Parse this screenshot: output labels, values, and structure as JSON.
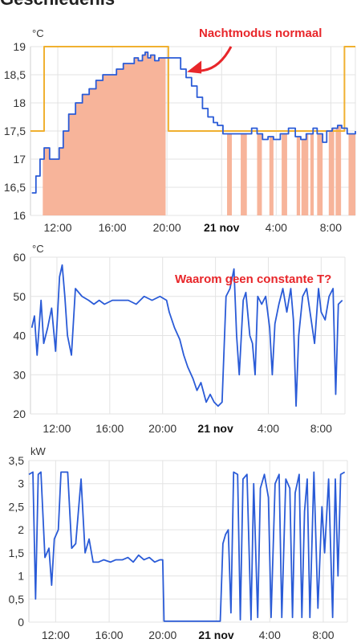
{
  "page": {
    "title": "Geschiedenis"
  },
  "colors": {
    "temperature": "#2a5bd7",
    "setpoint": "#f0b030",
    "heating": "#f7b49a",
    "annotation": "#e8262a",
    "grid": "#e3e3e3"
  },
  "chart_data": [
    {
      "type": "line",
      "ylabel": "°C",
      "ylim": [
        16,
        19
      ],
      "xlim": [
        10,
        33.8
      ],
      "yticks": [
        16,
        16.5,
        17,
        17.5,
        18,
        18.5,
        19
      ],
      "ytick_labels": [
        "16",
        "16,5",
        "17",
        "17,5",
        "18",
        "18,5",
        "19"
      ],
      "xticks": [
        12,
        16,
        20,
        24,
        28,
        32
      ],
      "xtick_labels": [
        "12:00",
        "16:00",
        "20:00",
        "21 nov",
        "4:00",
        "8:00"
      ],
      "grid": true,
      "annotation": {
        "text": "Nachtmodus normaal",
        "arrow_to": [
          21.7,
          18.55
        ]
      },
      "series": [
        {
          "role": "setpoint",
          "color": "#f0b030",
          "points": [
            [
              10,
              17.5
            ],
            [
              11,
              17.5
            ],
            [
              11,
              19
            ],
            [
              20.1,
              19
            ],
            [
              20.1,
              17.5
            ],
            [
              33,
              17.5
            ],
            [
              33,
              19
            ],
            [
              33.8,
              19
            ]
          ]
        },
        {
          "role": "temperature",
          "color": "#2a5bd7",
          "points": [
            [
              10.1,
              16.4
            ],
            [
              10.4,
              16.7
            ],
            [
              10.7,
              17
            ],
            [
              11.0,
              17.2
            ],
            [
              11.4,
              17.0
            ],
            [
              11.8,
              17.0
            ],
            [
              12.1,
              17.2
            ],
            [
              12.4,
              17.5
            ],
            [
              12.8,
              17.8
            ],
            [
              13.3,
              18.0
            ],
            [
              13.8,
              18.15
            ],
            [
              14.3,
              18.25
            ],
            [
              14.8,
              18.4
            ],
            [
              15.3,
              18.5
            ],
            [
              15.8,
              18.5
            ],
            [
              16.3,
              18.6
            ],
            [
              16.8,
              18.7
            ],
            [
              17.3,
              18.7
            ],
            [
              17.6,
              18.8
            ],
            [
              17.9,
              18.75
            ],
            [
              18.2,
              18.85
            ],
            [
              18.4,
              18.9
            ],
            [
              18.6,
              18.8
            ],
            [
              18.8,
              18.85
            ],
            [
              19.1,
              18.75
            ],
            [
              19.4,
              18.8
            ],
            [
              19.8,
              18.8
            ],
            [
              20.2,
              18.8
            ],
            [
              20.6,
              18.8
            ],
            [
              21.0,
              18.6
            ],
            [
              21.4,
              18.45
            ],
            [
              21.8,
              18.3
            ],
            [
              22.2,
              18.1
            ],
            [
              22.6,
              17.9
            ],
            [
              23.0,
              17.75
            ],
            [
              23.4,
              17.65
            ],
            [
              23.7,
              17.6
            ],
            [
              24.1,
              17.45
            ],
            [
              24.5,
              17.45
            ],
            [
              24.9,
              17.45
            ],
            [
              25.3,
              17.45
            ],
            [
              25.8,
              17.45
            ],
            [
              26.2,
              17.55
            ],
            [
              26.6,
              17.45
            ],
            [
              27.0,
              17.35
            ],
            [
              27.4,
              17.4
            ],
            [
              27.8,
              17.35
            ],
            [
              28.3,
              17.45
            ],
            [
              28.9,
              17.55
            ],
            [
              29.4,
              17.4
            ],
            [
              29.8,
              17.35
            ],
            [
              30.2,
              17.45
            ],
            [
              30.7,
              17.55
            ],
            [
              31.0,
              17.45
            ],
            [
              31.4,
              17.3
            ],
            [
              31.7,
              17.5
            ],
            [
              32.1,
              17.55
            ],
            [
              32.5,
              17.6
            ],
            [
              32.8,
              17.55
            ],
            [
              33.2,
              17.45
            ],
            [
              33.6,
              17.45
            ],
            [
              33.8,
              17.5
            ]
          ]
        }
      ],
      "heating_periods": [
        [
          10.9,
          19.9
        ],
        [
          24.4,
          24.75
        ],
        [
          25.4,
          25.85
        ],
        [
          26.6,
          26.95
        ],
        [
          27.5,
          27.8
        ],
        [
          28.4,
          28.8
        ],
        [
          29.5,
          29.75
        ],
        [
          29.85,
          30.35
        ],
        [
          30.5,
          30.75
        ],
        [
          31.0,
          31.4
        ],
        [
          31.85,
          32.25
        ],
        [
          32.35,
          32.75
        ],
        [
          33.3,
          33.8
        ]
      ]
    },
    {
      "type": "line",
      "ylabel": "°C",
      "ylim": [
        20,
        60
      ],
      "xlim": [
        10,
        33.8
      ],
      "yticks": [
        20,
        30,
        40,
        50,
        60
      ],
      "ytick_labels": [
        "20",
        "30",
        "40",
        "50",
        "60"
      ],
      "xticks": [
        12,
        16,
        20,
        24,
        28,
        32
      ],
      "xtick_labels": [
        "12:00",
        "16:00",
        "20:00",
        "21 nov",
        "4:00",
        "8:00"
      ],
      "grid": true,
      "annotation": {
        "text": "Waarom geen constante T?"
      },
      "series": [
        {
          "role": "temperature",
          "color": "#2a5bd7",
          "points": [
            [
              10.1,
              42
            ],
            [
              10.3,
              45
            ],
            [
              10.5,
              35
            ],
            [
              10.8,
              49
            ],
            [
              11.0,
              38
            ],
            [
              11.3,
              42
            ],
            [
              11.6,
              47
            ],
            [
              11.9,
              36
            ],
            [
              12.2,
              55
            ],
            [
              12.4,
              58
            ],
            [
              12.6,
              50
            ],
            [
              12.8,
              40
            ],
            [
              13.1,
              35
            ],
            [
              13.4,
              52
            ],
            [
              13.9,
              50
            ],
            [
              14.4,
              49
            ],
            [
              14.8,
              48
            ],
            [
              15.2,
              49
            ],
            [
              15.6,
              48
            ],
            [
              16.2,
              49
            ],
            [
              16.8,
              49
            ],
            [
              17.4,
              49
            ],
            [
              18.0,
              48
            ],
            [
              18.6,
              50
            ],
            [
              19.2,
              49
            ],
            [
              19.8,
              50
            ],
            [
              20.3,
              49
            ],
            [
              20.5,
              46
            ],
            [
              20.9,
              42
            ],
            [
              21.3,
              39
            ],
            [
              21.6,
              35
            ],
            [
              21.9,
              32
            ],
            [
              22.3,
              29
            ],
            [
              22.6,
              26
            ],
            [
              22.9,
              28
            ],
            [
              23.3,
              23
            ],
            [
              23.6,
              25
            ],
            [
              23.9,
              23
            ],
            [
              24.2,
              22
            ],
            [
              24.5,
              23
            ],
            [
              24.8,
              50
            ],
            [
              25.1,
              52
            ],
            [
              25.4,
              57
            ],
            [
              25.6,
              40
            ],
            [
              25.8,
              30
            ],
            [
              26.1,
              49
            ],
            [
              26.3,
              51
            ],
            [
              26.6,
              40
            ],
            [
              26.8,
              38
            ],
            [
              27.0,
              30
            ],
            [
              27.2,
              50
            ],
            [
              27.5,
              48
            ],
            [
              27.8,
              50
            ],
            [
              28.1,
              42
            ],
            [
              28.3,
              30
            ],
            [
              28.5,
              43
            ],
            [
              28.8,
              48
            ],
            [
              29.1,
              52
            ],
            [
              29.4,
              46
            ],
            [
              29.7,
              52
            ],
            [
              29.9,
              44
            ],
            [
              30.1,
              22
            ],
            [
              30.3,
              40
            ],
            [
              30.6,
              50
            ],
            [
              30.9,
              52
            ],
            [
              31.2,
              45
            ],
            [
              31.5,
              38
            ],
            [
              31.8,
              52
            ],
            [
              32.0,
              46
            ],
            [
              32.3,
              44
            ],
            [
              32.6,
              50
            ],
            [
              32.9,
              52
            ],
            [
              33.1,
              25
            ],
            [
              33.3,
              48
            ],
            [
              33.6,
              49
            ]
          ]
        }
      ]
    },
    {
      "type": "line",
      "ylabel": "kW",
      "ylim": [
        0,
        3.5
      ],
      "xlim": [
        10,
        33.8
      ],
      "yticks": [
        0,
        0.5,
        1,
        1.5,
        2,
        2.5,
        3,
        3.5
      ],
      "ytick_labels": [
        "0",
        "0,5",
        "1",
        "1,5",
        "2",
        "2,5",
        "3",
        "3,5"
      ],
      "xticks": [
        12,
        16,
        20,
        24,
        28,
        32
      ],
      "xtick_labels": [
        "12:00",
        "16:00",
        "20:00",
        "21 nov",
        "4:00",
        "8:00"
      ],
      "grid": true,
      "series": [
        {
          "role": "power",
          "color": "#2a5bd7",
          "points": [
            [
              10.0,
              3.2
            ],
            [
              10.3,
              3.25
            ],
            [
              10.5,
              0.5
            ],
            [
              10.7,
              3.2
            ],
            [
              10.9,
              3.25
            ],
            [
              11.2,
              1.4
            ],
            [
              11.5,
              1.6
            ],
            [
              11.7,
              0.8
            ],
            [
              11.9,
              1.8
            ],
            [
              12.2,
              2.0
            ],
            [
              12.4,
              3.25
            ],
            [
              12.9,
              3.25
            ],
            [
              13.2,
              1.6
            ],
            [
              13.5,
              1.7
            ],
            [
              13.9,
              3.1
            ],
            [
              14.2,
              1.5
            ],
            [
              14.5,
              1.8
            ],
            [
              14.8,
              1.3
            ],
            [
              15.2,
              1.3
            ],
            [
              15.6,
              1.35
            ],
            [
              16.1,
              1.3
            ],
            [
              16.5,
              1.35
            ],
            [
              17.0,
              1.35
            ],
            [
              17.4,
              1.4
            ],
            [
              17.8,
              1.3
            ],
            [
              18.2,
              1.45
            ],
            [
              18.6,
              1.35
            ],
            [
              19.0,
              1.4
            ],
            [
              19.4,
              1.3
            ],
            [
              19.8,
              1.35
            ],
            [
              20.0,
              1.35
            ],
            [
              20.1,
              0.02
            ],
            [
              24.3,
              0.02
            ],
            [
              24.5,
              1.7
            ],
            [
              24.7,
              1.9
            ],
            [
              24.9,
              2.0
            ],
            [
              25.1,
              0.2
            ],
            [
              25.3,
              3.25
            ],
            [
              25.6,
              3.2
            ],
            [
              25.8,
              0.05
            ],
            [
              26.0,
              3.1
            ],
            [
              26.3,
              3.2
            ],
            [
              26.6,
              0.05
            ],
            [
              26.8,
              3.0
            ],
            [
              27.1,
              0.1
            ],
            [
              27.3,
              2.9
            ],
            [
              27.6,
              3.2
            ],
            [
              27.9,
              2.7
            ],
            [
              28.1,
              0.1
            ],
            [
              28.4,
              3.0
            ],
            [
              28.7,
              3.2
            ],
            [
              28.9,
              0.1
            ],
            [
              29.2,
              3.1
            ],
            [
              29.5,
              2.9
            ],
            [
              29.7,
              0.1
            ],
            [
              29.9,
              2.8
            ],
            [
              30.2,
              3.2
            ],
            [
              30.4,
              0.1
            ],
            [
              30.6,
              2.4
            ],
            [
              30.8,
              3.1
            ],
            [
              31.0,
              0.1
            ],
            [
              31.3,
              3.25
            ],
            [
              31.6,
              0.3
            ],
            [
              31.9,
              2.5
            ],
            [
              32.1,
              1.5
            ],
            [
              32.4,
              3.1
            ],
            [
              32.7,
              0.1
            ],
            [
              32.9,
              3.1
            ],
            [
              33.1,
              1.0
            ],
            [
              33.3,
              3.2
            ],
            [
              33.6,
              3.25
            ]
          ]
        }
      ]
    }
  ]
}
